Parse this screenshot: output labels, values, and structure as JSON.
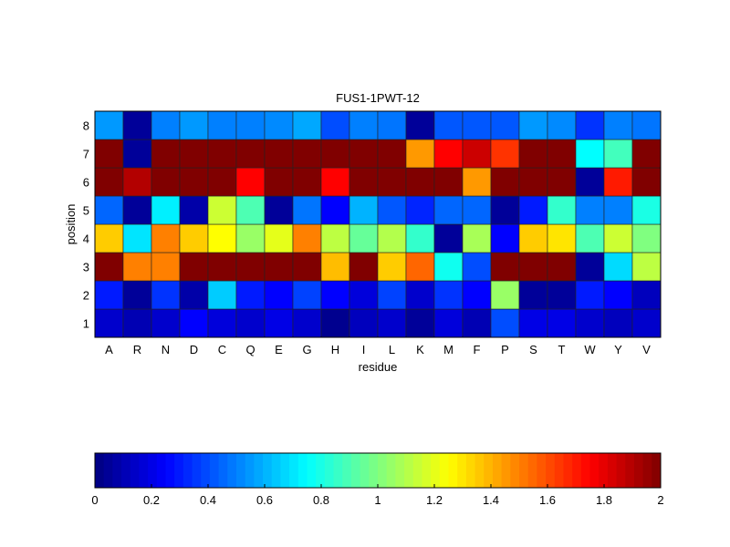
{
  "chart_data": {
    "type": "heatmap",
    "title": "FUS1-1PWT-12",
    "xlabel": "residue",
    "ylabel": "position",
    "x_categories": [
      "A",
      "R",
      "N",
      "D",
      "C",
      "Q",
      "E",
      "G",
      "H",
      "I",
      "L",
      "K",
      "M",
      "F",
      "P",
      "S",
      "T",
      "W",
      "Y",
      "V"
    ],
    "y_categories": [
      "1",
      "2",
      "3",
      "4",
      "5",
      "6",
      "7",
      "8"
    ],
    "colormap": "jet",
    "clim": [
      0,
      2
    ],
    "colorbar": {
      "placement": "bottom",
      "ticks": [
        "0",
        "0.2",
        "0.4",
        "0.6",
        "0.8",
        "1",
        "1.2",
        "1.4",
        "1.6",
        "1.8",
        "2"
      ]
    },
    "values_by_position": {
      "1": [
        0.15,
        0.1,
        0.15,
        0.25,
        0.18,
        0.15,
        0.2,
        0.15,
        0.03,
        0.12,
        0.15,
        0.05,
        0.18,
        0.1,
        0.4,
        0.2,
        0.2,
        0.15,
        0.12,
        0.15
      ],
      "2": [
        0.3,
        0.05,
        0.35,
        0.08,
        0.65,
        0.3,
        0.25,
        0.38,
        0.25,
        0.18,
        0.38,
        0.15,
        0.35,
        0.25,
        1.05,
        0.05,
        0.05,
        0.3,
        0.25,
        0.12
      ],
      "3": [
        2.0,
        1.5,
        1.5,
        2.0,
        2.0,
        2.0,
        2.0,
        2.0,
        1.38,
        2.0,
        1.35,
        1.55,
        0.78,
        0.4,
        2.0,
        2.0,
        2.0,
        0.05,
        0.68,
        1.12
      ],
      "4": [
        1.35,
        0.7,
        1.5,
        1.35,
        1.25,
        1.05,
        1.2,
        1.5,
        1.12,
        0.95,
        1.1,
        0.85,
        0.05,
        1.08,
        0.25,
        1.35,
        1.3,
        0.9,
        1.15,
        1.0
      ],
      "5": [
        0.45,
        0.05,
        0.72,
        0.08,
        1.15,
        0.9,
        0.05,
        0.48,
        0.25,
        0.6,
        0.42,
        0.32,
        0.45,
        0.45,
        0.05,
        0.3,
        0.85,
        0.5,
        0.5,
        0.8
      ],
      "6": [
        2.0,
        1.9,
        2.0,
        2.0,
        2.0,
        1.75,
        2.0,
        2.0,
        1.75,
        2.0,
        2.0,
        2.0,
        2.0,
        1.45,
        2.0,
        2.0,
        2.0,
        0.05,
        1.7,
        2.0
      ],
      "7": [
        2.0,
        0.05,
        2.0,
        2.0,
        2.0,
        2.0,
        2.0,
        2.0,
        2.0,
        2.0,
        2.0,
        1.45,
        1.75,
        1.85,
        1.65,
        2.0,
        2.0,
        0.75,
        0.88,
        2.0
      ],
      "8": [
        0.55,
        0.05,
        0.5,
        0.55,
        0.5,
        0.5,
        0.52,
        0.58,
        0.4,
        0.5,
        0.48,
        0.05,
        0.42,
        0.42,
        0.42,
        0.55,
        0.52,
        0.35,
        0.5,
        0.48
      ]
    }
  }
}
